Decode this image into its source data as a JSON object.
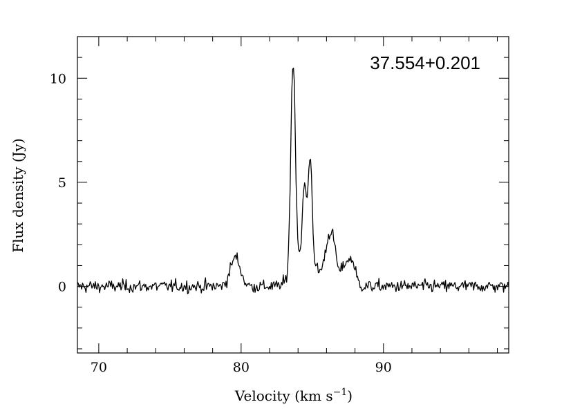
{
  "chart_data": {
    "type": "line",
    "title": "",
    "annotation": "37.554+0.201",
    "xlabel": "Velocity (km s",
    "xlabel_sup": "−1",
    "xlabel_close": ")",
    "ylabel": "Flux density (Jy)",
    "xlim": [
      68.5,
      98.8
    ],
    "ylim": [
      -3.2,
      12.0
    ],
    "x_ticks": [
      {
        "value": 70,
        "label": "70"
      },
      {
        "value": 80,
        "label": "80"
      },
      {
        "value": 90,
        "label": "90"
      }
    ],
    "y_ticks": [
      {
        "value": 0,
        "label": "0"
      },
      {
        "value": 5,
        "label": "5"
      },
      {
        "value": 10,
        "label": "10"
      }
    ],
    "x_minor_step": 2,
    "y_minor_step": 1,
    "grid": false,
    "legend": "none",
    "line_color": "#000000",
    "noise_rms": 0.15,
    "velocity_step": 0.06,
    "features": [
      {
        "center": 79.6,
        "peak": 1.4,
        "width": 0.35
      },
      {
        "center": 83.65,
        "peak": 9.9,
        "width": 0.16
      },
      {
        "center": 84.0,
        "peak": 1.2,
        "width": 0.5
      },
      {
        "center": 84.45,
        "peak": 3.8,
        "width": 0.15
      },
      {
        "center": 84.85,
        "peak": 5.2,
        "width": 0.14
      },
      {
        "center": 85.1,
        "peak": 0.9,
        "width": 0.35
      },
      {
        "center": 86.35,
        "peak": 2.5,
        "width": 0.3
      },
      {
        "center": 85.9,
        "peak": 0.7,
        "width": 0.25
      },
      {
        "center": 87.35,
        "peak": 1.1,
        "width": 0.28
      },
      {
        "center": 87.85,
        "peak": 1.0,
        "width": 0.22
      }
    ]
  }
}
